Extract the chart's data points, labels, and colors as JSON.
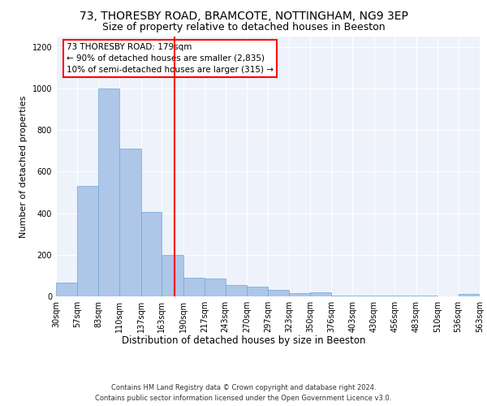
{
  "title1": "73, THORESBY ROAD, BRAMCOTE, NOTTINGHAM, NG9 3EP",
  "title2": "Size of property relative to detached houses in Beeston",
  "xlabel": "Distribution of detached houses by size in Beeston",
  "ylabel": "Number of detached properties",
  "footer": "Contains HM Land Registry data © Crown copyright and database right 2024.\nContains public sector information licensed under the Open Government Licence v3.0.",
  "bins": [
    30,
    57,
    83,
    110,
    137,
    163,
    190,
    217,
    243,
    270,
    297,
    323,
    350,
    376,
    403,
    430,
    456,
    483,
    510,
    536,
    563
  ],
  "values": [
    65,
    530,
    1000,
    710,
    405,
    200,
    90,
    85,
    55,
    45,
    30,
    15,
    20,
    5,
    5,
    5,
    2,
    2,
    0,
    10,
    0
  ],
  "bar_color": "#aec6e8",
  "bar_edge_color": "#6aaad4",
  "red_line_x": 179,
  "annotation_box_text": "73 THORESBY ROAD: 179sqm\n← 90% of detached houses are smaller (2,835)\n10% of semi-detached houses are larger (315) →",
  "ylim": [
    0,
    1250
  ],
  "yticks": [
    0,
    200,
    400,
    600,
    800,
    1000,
    1200
  ],
  "background_color": "#eef2fb",
  "title1_fontsize": 10,
  "title2_fontsize": 9,
  "xlabel_fontsize": 8.5,
  "ylabel_fontsize": 8,
  "tick_fontsize": 7,
  "annotation_fontsize": 7.5,
  "footer_fontsize": 6
}
